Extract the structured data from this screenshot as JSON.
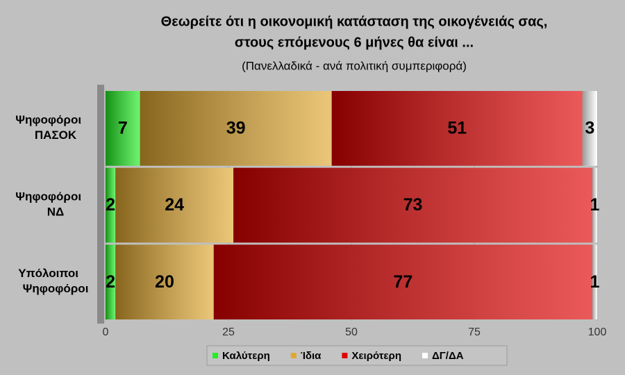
{
  "chart_data": {
    "type": "stacked-bar-horizontal",
    "title": [
      "Θεωρείτε ότι η οικονομική κατάσταση της οικογένειάς σας,",
      "στους επόμενους  6 μήνες θα είναι ..."
    ],
    "subtitle": "(Πανελλαδικά - ανά πολιτική συμπεριφορά)",
    "categories": [
      "Ψηφοφόροι ΠΑΣΟΚ",
      "Ψηφοφόροι ΝΔ",
      "Υπόλοιποι Ψηφοφόροι"
    ],
    "series": [
      {
        "name": "Καλύτερη",
        "color": "#22ee22",
        "values": [
          7,
          2,
          2
        ]
      },
      {
        "name": "Ίδια",
        "color": "#e0a830",
        "values": [
          39,
          24,
          20
        ]
      },
      {
        "name": "Χειρότερη",
        "color": "#e00000",
        "values": [
          51,
          73,
          77
        ]
      },
      {
        "name": "ΔΓ/ΔΑ",
        "color": "#ffffff",
        "values": [
          3,
          1,
          1
        ]
      }
    ],
    "xlim": [
      0,
      100
    ],
    "xticks": [
      0,
      25,
      50,
      75,
      100
    ],
    "grid": true,
    "legend": "bottom"
  }
}
